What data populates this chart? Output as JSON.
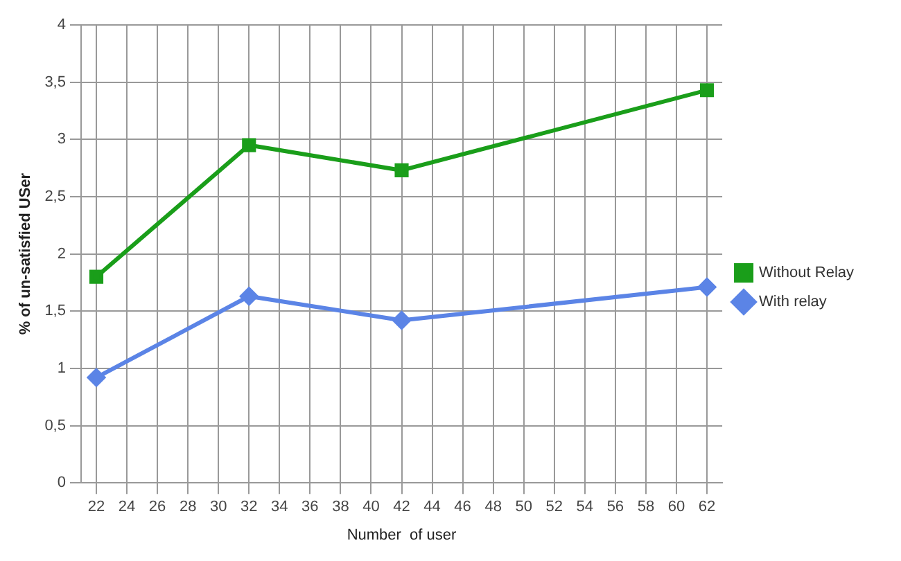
{
  "chart_data": {
    "type": "line",
    "xlabel": "Number  of user",
    "ylabel": "% of un-satisfied USer",
    "xlim": [
      21,
      63
    ],
    "xticks": [
      22,
      24,
      26,
      28,
      30,
      32,
      34,
      36,
      38,
      40,
      42,
      44,
      46,
      48,
      50,
      52,
      54,
      56,
      58,
      60,
      62
    ],
    "ylim": [
      0,
      4
    ],
    "yticks": [
      0,
      {
        "value": 0.5,
        "label": "0,5"
      },
      1,
      {
        "value": 1.5,
        "label": "1,5"
      },
      2,
      {
        "value": 2.5,
        "label": "2,5"
      },
      3,
      {
        "value": 3.5,
        "label": "3,5"
      },
      4
    ],
    "grid": true,
    "legend": "right",
    "series": [
      {
        "name": "Without Relay",
        "color": "#1a9e1a",
        "marker": "square",
        "x": [
          22,
          32,
          42,
          62
        ],
        "values": [
          1.8,
          2.95,
          2.73,
          3.43
        ]
      },
      {
        "name": "With relay",
        "color": "#5b84e6",
        "marker": "diamond",
        "x": [
          22,
          32,
          42,
          62
        ],
        "values": [
          0.92,
          1.63,
          1.42,
          1.71
        ]
      }
    ]
  }
}
